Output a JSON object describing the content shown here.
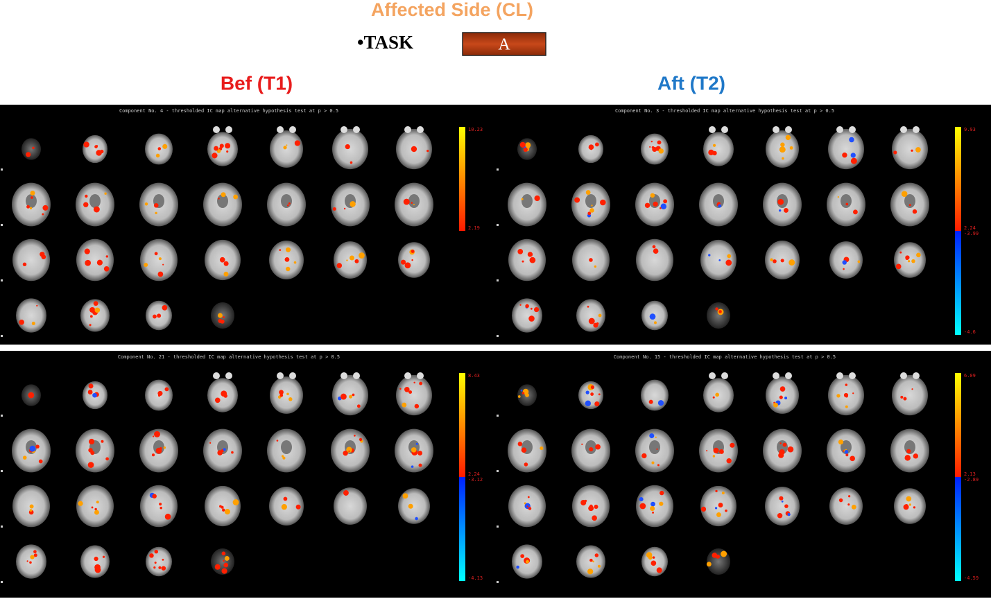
{
  "header": {
    "title": "Affected Side (CL)",
    "task": "•TASK",
    "box": "A"
  },
  "columns": [
    "Bef (T1)",
    "Aft (T2)"
  ],
  "panels": [
    {
      "title": "Component No. 4 - thresholded IC map   alternative hypothesis test at p > 0.5",
      "colorbar": [
        "10.23",
        "2.19"
      ]
    },
    {
      "title": "Component No. 3 - thresholded IC map   alternative hypothesis test at p > 0.5",
      "colorbar": [
        "9.93",
        "2.24",
        "-3.99",
        "-4.6"
      ]
    },
    {
      "title": "Component No. 21 - thresholded IC map   alternative hypothesis test at p > 0.5",
      "colorbar": [
        "8.43",
        "2.24",
        "-3.12",
        "-4.13"
      ]
    },
    {
      "title": "Component No. 15 - thresholded IC map   alternative hypothesis test at p > 0.5",
      "colorbar": [
        "6.09",
        "2.13",
        "-2.89",
        "-4.59"
      ]
    }
  ]
}
